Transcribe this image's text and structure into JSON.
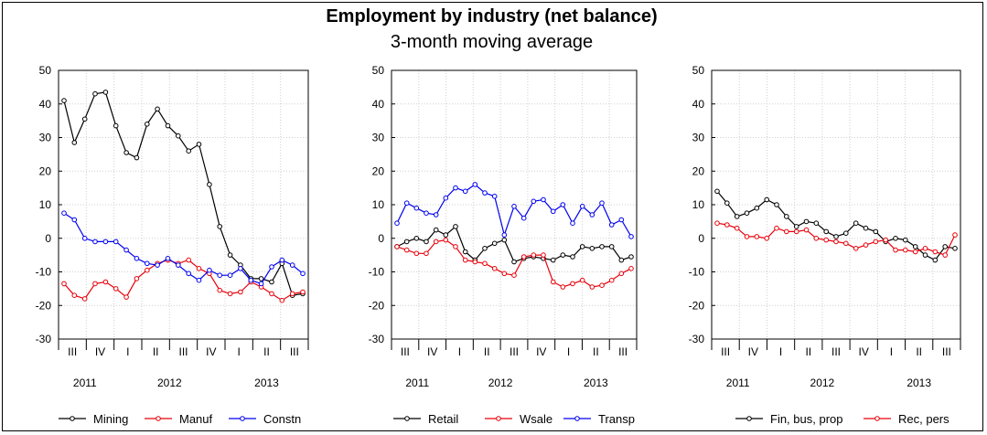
{
  "title": "Employment by industry (net balance)",
  "subtitle": "3-month moving average",
  "colors": {
    "black": "#000000",
    "red": "#e8000b",
    "blue": "#0000ee",
    "grid": "#cfcfcf"
  },
  "chart_data": [
    {
      "type": "line",
      "ylim": [
        -30,
        50
      ],
      "yticks": [
        "50",
        "40",
        "30",
        "20",
        "10",
        "0",
        "-10",
        "-20",
        "-30"
      ],
      "quarter_labels": [
        "III",
        "IV",
        "I",
        "II",
        "III",
        "IV",
        "I",
        "II",
        "III"
      ],
      "year_labels": [
        "2011",
        "2012",
        "2013"
      ],
      "grid": true,
      "legend_position": "bottom",
      "series": [
        {
          "name": "Mining",
          "color": "#000000",
          "values": [
            41,
            28.5,
            35.5,
            43,
            43.5,
            33.5,
            25.5,
            24,
            34,
            38.5,
            33.5,
            30.5,
            26,
            28,
            16,
            3.5,
            -5,
            -8,
            -12,
            -12,
            -13,
            -7.5,
            -17,
            -16.5
          ]
        },
        {
          "name": "Manuf",
          "color": "#e8000b",
          "values": [
            -13.5,
            -17,
            -18,
            -13.5,
            -13,
            -15,
            -17.5,
            -12,
            -9.5,
            -7.5,
            -6.5,
            -7.5,
            -6.5,
            -9,
            -10.5,
            -15.5,
            -16.5,
            -16,
            -13,
            -14.5,
            -16.5,
            -18.5,
            -16.5,
            -16
          ]
        },
        {
          "name": "Constn",
          "color": "#0000ee",
          "values": [
            7.5,
            5.5,
            0,
            -1,
            -1,
            -1,
            -3.5,
            -6,
            -7.5,
            -8,
            -6,
            -8,
            -10.5,
            -12.5,
            -9.5,
            -11,
            -11,
            -9,
            -12.5,
            -13.5,
            -8.5,
            -6.5,
            -8,
            -10.5
          ]
        }
      ]
    },
    {
      "type": "line",
      "ylim": [
        -30,
        50
      ],
      "yticks": [
        "50",
        "40",
        "30",
        "20",
        "10",
        "0",
        "-10",
        "-20",
        "-30"
      ],
      "quarter_labels": [
        "III",
        "IV",
        "I",
        "II",
        "III",
        "IV",
        "I",
        "II",
        "III"
      ],
      "year_labels": [
        "2011",
        "2012",
        "2013"
      ],
      "grid": true,
      "legend_position": "bottom",
      "series": [
        {
          "name": "Retail",
          "color": "#000000",
          "values": [
            -2.5,
            -1,
            0,
            -1,
            2.5,
            1,
            3.5,
            -4,
            -6.5,
            -3,
            -1.5,
            -0.5,
            -7,
            -6,
            -5.5,
            -6,
            -6.5,
            -5,
            -5.5,
            -2.5,
            -3,
            -2.5,
            -2.5,
            -6.5,
            -5.5
          ]
        },
        {
          "name": "Wsale",
          "color": "#e8000b",
          "values": [
            -2.5,
            -3.5,
            -4.5,
            -4.5,
            -1,
            -0.5,
            -2.5,
            -6.5,
            -7,
            -7.5,
            -9,
            -10.5,
            -11,
            -5.5,
            -5,
            -5,
            -13,
            -14.5,
            -13.5,
            -12.5,
            -14.5,
            -14,
            -12.5,
            -10.5,
            -9
          ]
        },
        {
          "name": "Transp",
          "color": "#0000ee",
          "values": [
            4.5,
            10.5,
            9,
            7.5,
            7,
            12,
            15,
            14,
            16,
            13.5,
            12.5,
            1,
            9.5,
            6,
            11,
            11.5,
            8,
            10,
            4.5,
            9.5,
            7,
            10.5,
            4,
            5.5,
            0.5
          ]
        }
      ]
    },
    {
      "type": "line",
      "ylim": [
        -30,
        50
      ],
      "yticks": [
        "50",
        "40",
        "30",
        "20",
        "10",
        "0",
        "-10",
        "-20",
        "-30"
      ],
      "quarter_labels": [
        "III",
        "IV",
        "I",
        "II",
        "III",
        "IV",
        "I",
        "II",
        "III"
      ],
      "year_labels": [
        "2011",
        "2012",
        "2013"
      ],
      "grid": true,
      "legend_position": "bottom",
      "series": [
        {
          "name": "Fin, bus, prop",
          "color": "#000000",
          "values": [
            14,
            10.5,
            6.5,
            7.5,
            9,
            11.5,
            10,
            6.5,
            3.5,
            5,
            4.5,
            2,
            0.5,
            1.5,
            4.5,
            3,
            2,
            -1,
            0,
            -0.5,
            -2.5,
            -5,
            -6.5,
            -2.5,
            -3
          ]
        },
        {
          "name": "Rec, pers",
          "color": "#e8000b",
          "values": [
            4.5,
            4,
            3,
            0.5,
            0.5,
            0,
            3,
            2,
            2,
            2.5,
            0,
            -0.5,
            -1,
            -1.5,
            -3,
            -2,
            -1,
            -0.5,
            -3.5,
            -3.5,
            -4,
            -3,
            -4,
            -5,
            1
          ]
        }
      ]
    }
  ]
}
